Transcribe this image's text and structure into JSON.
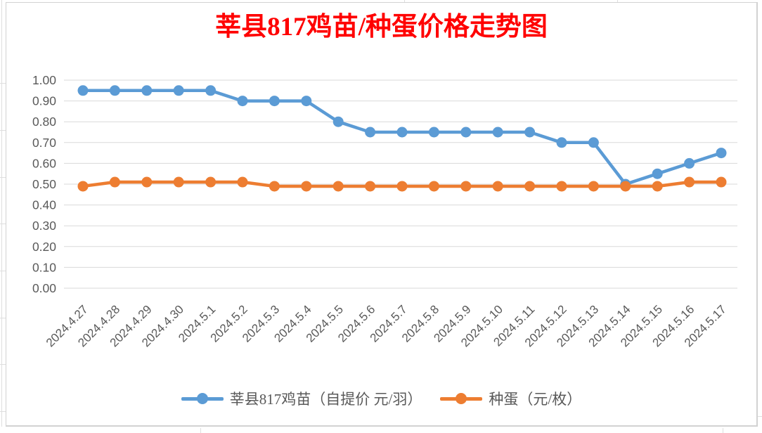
{
  "chart_data": {
    "type": "line",
    "title": "莘县817鸡苗/种蛋价格走势图",
    "title_color": "#FF0000",
    "categories": [
      "2024.4.27",
      "2024.4.28",
      "2024.4.29",
      "2024.4.30",
      "2024.5.1",
      "2024.5.2",
      "2024.5.3",
      "2024.5.4",
      "2024.5.5",
      "2024.5.6",
      "2024.5.7",
      "2024.5.8",
      "2024.5.9",
      "2024.5.10",
      "2024.5.11",
      "2024.5.12",
      "2024.5.13",
      "2024.5.14",
      "2024.5.15",
      "2024.5.16",
      "2024.5.17"
    ],
    "series": [
      {
        "name": "莘县817鸡苗（自提价 元/羽）",
        "color": "#5B9BD5",
        "values": [
          0.95,
          0.95,
          0.95,
          0.95,
          0.95,
          0.9,
          0.9,
          0.9,
          0.8,
          0.75,
          0.75,
          0.75,
          0.75,
          0.75,
          0.75,
          0.7,
          0.7,
          0.5,
          0.55,
          0.6,
          0.65
        ]
      },
      {
        "name": "种蛋（元/枚）",
        "color": "#ED7D31",
        "values": [
          0.49,
          0.51,
          0.51,
          0.51,
          0.51,
          0.51,
          0.49,
          0.49,
          0.49,
          0.49,
          0.49,
          0.49,
          0.49,
          0.49,
          0.49,
          0.49,
          0.49,
          0.49,
          0.49,
          0.51,
          0.51
        ]
      }
    ],
    "ylim": [
      0,
      1.0
    ],
    "ytick_step": 0.1,
    "ytick_labels": [
      "0.00",
      "0.10",
      "0.20",
      "0.30",
      "0.40",
      "0.50",
      "0.60",
      "0.70",
      "0.80",
      "0.90",
      "1.00"
    ],
    "xlabel": "",
    "ylabel": "",
    "grid": "horizontal",
    "gridline_color": "#D9D9D9",
    "axis_text_color": "#595959",
    "legend_position": "bottom",
    "x_label_rotation_deg": -45
  }
}
